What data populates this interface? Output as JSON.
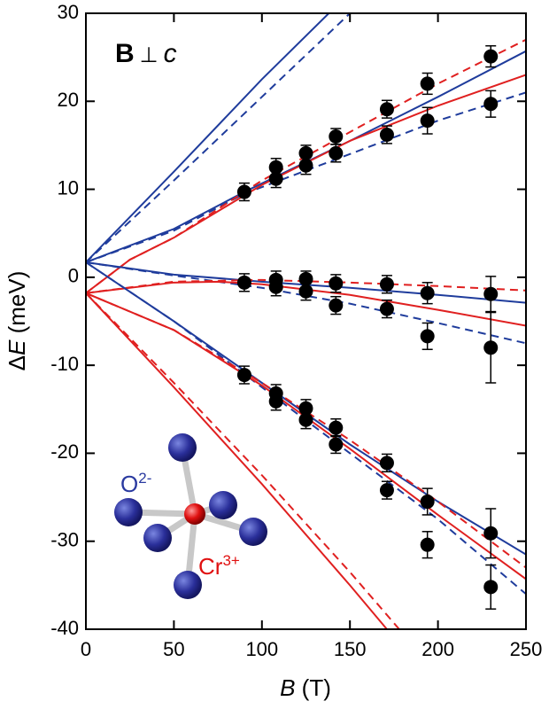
{
  "chart_data": {
    "type": "scatter",
    "annotation": [
      "B",
      "⊥",
      "c"
    ],
    "inset_labels": {
      "oxygen": [
        "O",
        "2-"
      ],
      "chromium": [
        "Cr",
        "3+"
      ]
    },
    "xlabel": [
      "B",
      " (T)"
    ],
    "ylabel": [
      "Δ",
      "E",
      " (meV)"
    ],
    "xlim": [
      0,
      250
    ],
    "ylim": [
      -40,
      30
    ],
    "xticks": [
      0,
      50,
      100,
      150,
      200,
      250
    ],
    "yticks": [
      -40,
      -30,
      -20,
      -10,
      0,
      10,
      20,
      30
    ],
    "points": {
      "color": "#000000",
      "x": [
        90,
        108,
        108,
        125,
        125,
        142,
        142,
        171,
        171,
        194,
        194,
        230,
        230,
        90,
        108,
        108,
        125,
        125,
        142,
        142,
        171,
        171,
        194,
        194,
        230,
        230,
        90,
        108,
        108,
        125,
        125,
        142,
        142,
        171,
        171,
        194,
        194,
        230,
        230
      ],
      "y": [
        9.7,
        12.5,
        11.2,
        14.1,
        12.7,
        16.0,
        14.1,
        19.1,
        16.2,
        22.0,
        17.8,
        25.1,
        19.7,
        -0.6,
        -0.3,
        -1.1,
        -0.2,
        -1.6,
        -0.7,
        -3.2,
        -0.8,
        -3.6,
        -1.8,
        -6.7,
        -1.9,
        -8.0,
        -11.1,
        -13.2,
        -14.1,
        -14.9,
        -16.2,
        -17.1,
        -19.0,
        -21.1,
        -24.2,
        -25.5,
        -30.4,
        -29.1,
        -35.2
      ],
      "err": [
        1.0,
        1.0,
        1.0,
        0.9,
        1.0,
        0.9,
        1.0,
        1.0,
        1.0,
        1.2,
        1.5,
        1.2,
        1.5,
        1.0,
        1.0,
        1.0,
        0.9,
        1.0,
        1.0,
        1.0,
        1.0,
        1.0,
        1.2,
        1.5,
        2.0,
        4.0,
        1.0,
        1.0,
        1.0,
        1.0,
        1.0,
        1.0,
        1.0,
        1.0,
        1.0,
        1.5,
        1.5,
        2.8,
        2.5
      ]
    },
    "curves": [
      {
        "color": "#1f3c9c",
        "dashed": false,
        "x": [
          0,
          50,
          100,
          138
        ],
        "y": [
          1.7,
          12,
          22.5,
          30
        ]
      },
      {
        "color": "#1f3c9c",
        "dashed": true,
        "x": [
          0,
          50,
          100,
          150
        ],
        "y": [
          1.7,
          11,
          20.5,
          30
        ]
      },
      {
        "color": "#1f3c9c",
        "dashed": false,
        "x": [
          0,
          50,
          90,
          150,
          200,
          250
        ],
        "y": [
          1.7,
          5.5,
          9.7,
          15.5,
          20.5,
          25.7
        ]
      },
      {
        "color": "#1f3c9c",
        "dashed": true,
        "x": [
          0,
          50,
          90,
          150,
          200,
          250
        ],
        "y": [
          1.7,
          5.3,
          9.5,
          14,
          17.8,
          21
        ]
      },
      {
        "color": "#e02020",
        "dashed": false,
        "x": [
          0,
          25,
          50,
          100,
          150,
          200,
          250
        ],
        "y": [
          -1.8,
          2,
          4.5,
          10.5,
          15.5,
          19.5,
          23
        ]
      },
      {
        "color": "#e02020",
        "dashed": true,
        "x": [
          0,
          25,
          50,
          100,
          150,
          200,
          250
        ],
        "y": [
          -1.8,
          2,
          4.5,
          11,
          16.5,
          22,
          27
        ]
      },
      {
        "color": "#1f3c9c",
        "dashed": false,
        "x": [
          0,
          50,
          100,
          150,
          200,
          250
        ],
        "y": [
          1.7,
          0.3,
          -0.5,
          -1.2,
          -2,
          -2.9
        ]
      },
      {
        "color": "#1f3c9c",
        "dashed": true,
        "x": [
          0,
          50,
          100,
          150,
          200,
          250
        ],
        "y": [
          1.7,
          0.2,
          -1.2,
          -3,
          -5.2,
          -7.5
        ]
      },
      {
        "color": "#e02020",
        "dashed": false,
        "x": [
          0,
          50,
          75,
          100,
          150,
          200,
          250
        ],
        "y": [
          -1.8,
          -0.6,
          -0.5,
          -0.8,
          -2,
          -3.7,
          -5.5
        ]
      },
      {
        "color": "#e02020",
        "dashed": true,
        "x": [
          0,
          50,
          100,
          150,
          200,
          250
        ],
        "y": [
          -1.8,
          -0.5,
          -0.3,
          -0.6,
          -1.0,
          -1.5
        ]
      },
      {
        "color": "#1f3c9c",
        "dashed": false,
        "x": [
          0,
          50,
          100,
          150,
          200,
          250
        ],
        "y": [
          1.7,
          -5,
          -12,
          -19,
          -25.5,
          -31.5
        ]
      },
      {
        "color": "#1f3c9c",
        "dashed": true,
        "x": [
          0,
          50,
          100,
          150,
          200,
          250
        ],
        "y": [
          1.7,
          -5,
          -12.5,
          -20,
          -27.5,
          -36
        ]
      },
      {
        "color": "#e02020",
        "dashed": false,
        "x": [
          0,
          50,
          100,
          150,
          200,
          250
        ],
        "y": [
          -1.8,
          -6,
          -12.3,
          -19.5,
          -27,
          -34.3
        ]
      },
      {
        "color": "#e02020",
        "dashed": true,
        "x": [
          0,
          50,
          100,
          150,
          200,
          250
        ],
        "y": [
          -1.8,
          -6,
          -12,
          -18.5,
          -25.5,
          -33
        ]
      },
      {
        "color": "#e02020",
        "dashed": false,
        "x": [
          0,
          50,
          100,
          150,
          171
        ],
        "y": [
          -1.8,
          -12.5,
          -23.5,
          -35,
          -40
        ]
      },
      {
        "color": "#e02020",
        "dashed": true,
        "x": [
          0,
          50,
          100,
          150,
          178
        ],
        "y": [
          -1.8,
          -12,
          -22.5,
          -33.5,
          -40
        ]
      }
    ]
  }
}
